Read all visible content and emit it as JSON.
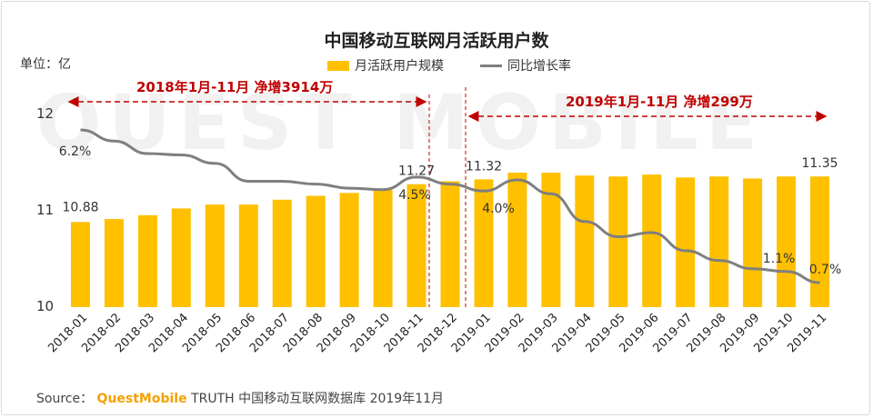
{
  "title": "中国移动互联网月活跃用户数",
  "unit_label": "单位：亿",
  "legend": {
    "bar": "月活跃用户规模",
    "line": "同比增长率"
  },
  "annotations": {
    "left_range": "2018年1月-11月  净增3914万",
    "right_range": "2019年1月-11月  净增299万"
  },
  "watermark": "QUEST MOBILE",
  "source": {
    "prefix": "Source：",
    "brand": "QuestMobile",
    "rest": " TRUTH 中国移动互联网数据库 2019年11月"
  },
  "colors": {
    "bar": "#FFC000",
    "line": "#7f7f7f",
    "annotation": "#C00000"
  },
  "chart_data": {
    "type": "bar",
    "categories": [
      "2018-01",
      "2018-02",
      "2018-03",
      "2018-04",
      "2018-05",
      "2018-06",
      "2018-07",
      "2018-08",
      "2018-09",
      "2018-10",
      "2018-11",
      "2018-12",
      "2019-01",
      "2019-02",
      "2019-03",
      "2019-04",
      "2019-05",
      "2019-06",
      "2019-07",
      "2019-08",
      "2019-09",
      "2019-10",
      "2019-11"
    ],
    "ylim": [
      10,
      12
    ],
    "yticks": [
      10,
      11,
      12
    ],
    "series": [
      {
        "name": "月活跃用户规模",
        "type": "bar",
        "values": [
          10.88,
          10.91,
          10.95,
          11.02,
          11.06,
          11.06,
          11.11,
          11.15,
          11.18,
          11.22,
          11.27,
          11.3,
          11.32,
          11.39,
          11.39,
          11.36,
          11.35,
          11.37,
          11.34,
          11.35,
          11.33,
          11.35,
          11.35
        ]
      },
      {
        "name": "同比增长率",
        "type": "line",
        "values": [
          6.2,
          5.8,
          5.35,
          5.3,
          5.0,
          4.35,
          4.35,
          4.25,
          4.1,
          4.05,
          4.5,
          4.25,
          4.0,
          4.4,
          3.9,
          2.9,
          2.35,
          2.5,
          1.85,
          1.5,
          1.2,
          1.1,
          0.7
        ]
      }
    ],
    "bar_labels": [
      {
        "index": 0,
        "text": "10.88"
      },
      {
        "index": 10,
        "text": "11.27"
      },
      {
        "index": 12,
        "text": "11.32"
      },
      {
        "index": 22,
        "text": "11.35"
      }
    ],
    "line_labels": [
      {
        "index": 0,
        "text": "6.2%"
      },
      {
        "index": 10,
        "text": "4.5%"
      },
      {
        "index": 12,
        "text": "4.0%"
      },
      {
        "index": 21,
        "text": "1.1%"
      },
      {
        "index": 22,
        "text": "0.7%"
      }
    ]
  }
}
